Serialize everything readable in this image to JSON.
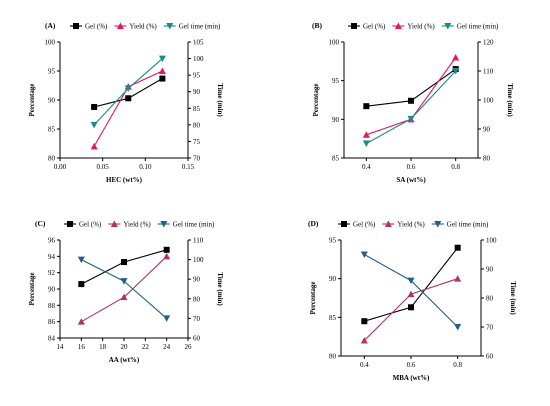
{
  "chart_data": [
    {
      "type": "line",
      "panel_label": "(A)",
      "xlabel": "HEC (wt%)",
      "ylabel": "Percentage",
      "y2label": "Time (min)",
      "x_ticks": [
        "0.00",
        "0.05",
        "0.10",
        "0.15"
      ],
      "y_ticks": [
        "80",
        "85",
        "90",
        "95",
        "100"
      ],
      "y2_ticks": [
        "70",
        "75",
        "80",
        "85",
        "90",
        "95",
        "100",
        "105"
      ],
      "xlim": [
        0,
        0.15
      ],
      "ylim": [
        80,
        100
      ],
      "y2lim": [
        70,
        105
      ],
      "legend_position": "top",
      "series": [
        {
          "name": "Gel (%)",
          "axis": "left",
          "marker": "square",
          "color": "#000000",
          "x": [
            0.04,
            0.08,
            0.12
          ],
          "y": [
            88.8,
            90.3,
            93.7
          ]
        },
        {
          "name": "Yield (%)",
          "axis": "left",
          "marker": "triangle-up",
          "color": "#e8175d",
          "x": [
            0.04,
            0.08,
            0.12
          ],
          "y": [
            82.0,
            92.3,
            95.0
          ]
        },
        {
          "name": "Gel time (min)",
          "axis": "right",
          "marker": "triangle-down",
          "color": "#1a8a8a",
          "x": [
            0.04,
            0.08,
            0.12
          ],
          "y": [
            80.0,
            91.0,
            100.0
          ]
        }
      ]
    },
    {
      "type": "line",
      "panel_label": "(B)",
      "xlabel": "SA (wt%)",
      "ylabel": "Percentage",
      "y2label": "Time (min)",
      "x_ticks": [
        "0.4",
        "0.6",
        "0.8"
      ],
      "y_ticks": [
        "85",
        "90",
        "95",
        "100"
      ],
      "y2_ticks": [
        "80",
        "90",
        "100",
        "110",
        "120"
      ],
      "xlim": [
        0.3,
        0.9
      ],
      "ylim": [
        85,
        100
      ],
      "y2lim": [
        80,
        120
      ],
      "legend_position": "top",
      "series": [
        {
          "name": "Gel (%)",
          "axis": "left",
          "marker": "square",
          "color": "#000000",
          "x": [
            0.4,
            0.6,
            0.8
          ],
          "y": [
            91.7,
            92.4,
            96.5
          ]
        },
        {
          "name": "Yield (%)",
          "axis": "left",
          "marker": "triangle-up",
          "color": "#e8175d",
          "x": [
            0.4,
            0.6,
            0.8
          ],
          "y": [
            88.0,
            90.0,
            98.0
          ]
        },
        {
          "name": "Gel time (min)",
          "axis": "right",
          "marker": "triangle-down",
          "color": "#1a8a8a",
          "x": [
            0.4,
            0.6,
            0.8
          ],
          "y": [
            85.0,
            93.5,
            110.0
          ]
        }
      ]
    },
    {
      "type": "line",
      "panel_label": "(C)",
      "xlabel": "AA (wt%)",
      "ylabel": "Percentage",
      "y2label": "Time (min)",
      "x_ticks": [
        "14",
        "16",
        "18",
        "20",
        "22",
        "24",
        "26"
      ],
      "y_ticks": [
        "84",
        "86",
        "88",
        "90",
        "92",
        "94",
        "96"
      ],
      "y2_ticks": [
        "60",
        "70",
        "80",
        "90",
        "100",
        "110"
      ],
      "xlim": [
        14,
        26
      ],
      "ylim": [
        84,
        96
      ],
      "y2lim": [
        60,
        110
      ],
      "legend_position": "top",
      "series": [
        {
          "name": "Gel (%)",
          "axis": "left",
          "marker": "square",
          "color": "#000000",
          "x": [
            16,
            20,
            24
          ],
          "y": [
            90.6,
            93.3,
            94.8
          ]
        },
        {
          "name": "Yield (%)",
          "axis": "left",
          "marker": "triangle-up",
          "color": "#b0355e",
          "x": [
            16,
            20,
            24
          ],
          "y": [
            86.0,
            89.0,
            94.0
          ]
        },
        {
          "name": "Gel time (min)",
          "axis": "right",
          "marker": "triangle-down",
          "color": "#1f5f8b",
          "x": [
            16,
            20,
            24
          ],
          "y": [
            100.0,
            89.0,
            70.0
          ]
        }
      ]
    },
    {
      "type": "line",
      "panel_label": "(D)",
      "xlabel": "MBA (wt%)",
      "ylabel": "Percentage",
      "y2label": "Time (min)",
      "x_ticks": [
        "0.4",
        "0.6",
        "0.8"
      ],
      "y_ticks": [
        "80",
        "85",
        "90",
        "95"
      ],
      "y2_ticks": [
        "60",
        "70",
        "80",
        "90",
        "100"
      ],
      "xlim": [
        0.3,
        0.9
      ],
      "ylim": [
        80,
        95
      ],
      "y2lim": [
        60,
        100
      ],
      "legend_position": "top",
      "series": [
        {
          "name": "Gel (%)",
          "axis": "left",
          "marker": "square",
          "color": "#000000",
          "x": [
            0.4,
            0.6,
            0.8
          ],
          "y": [
            84.5,
            86.3,
            94.0
          ]
        },
        {
          "name": "Yield (%)",
          "axis": "left",
          "marker": "triangle-up",
          "color": "#b0355e",
          "x": [
            0.4,
            0.6,
            0.8
          ],
          "y": [
            82.0,
            88.0,
            90.0
          ]
        },
        {
          "name": "Gel time (min)",
          "axis": "right",
          "marker": "triangle-down",
          "color": "#1f5f8b",
          "x": [
            0.4,
            0.6,
            0.8
          ],
          "y": [
            95.0,
            86.0,
            70.0
          ]
        }
      ]
    }
  ]
}
